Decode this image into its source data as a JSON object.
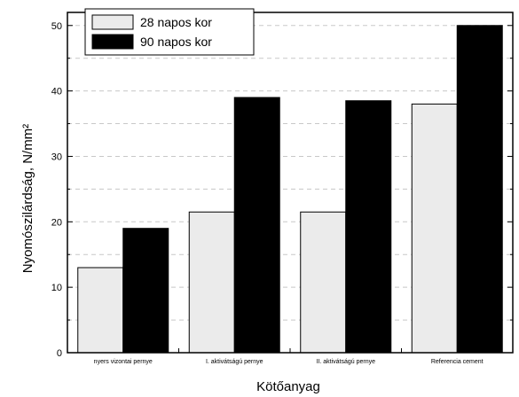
{
  "chart_data": {
    "type": "bar",
    "title": "",
    "xlabel": "Kötőanyag",
    "ylabel": "Nyomószilárdság, N/mm²",
    "categories": [
      "nyers vizontai pernye",
      "I. aktivátságú pernye",
      "II. aktivátságú pernye",
      "Referencia cement"
    ],
    "series": [
      {
        "name": "28 napos kor",
        "values": [
          13,
          21.5,
          21.5,
          38
        ],
        "color": "#ebebeb"
      },
      {
        "name": "90 napos kor",
        "values": [
          19,
          39,
          38.5,
          50
        ],
        "color": "#000000"
      }
    ],
    "ylim": [
      0,
      52
    ],
    "yticks": [
      0,
      10,
      20,
      30,
      40,
      50
    ],
    "grid": "dashed horizontal",
    "legend_position": "top-left"
  }
}
